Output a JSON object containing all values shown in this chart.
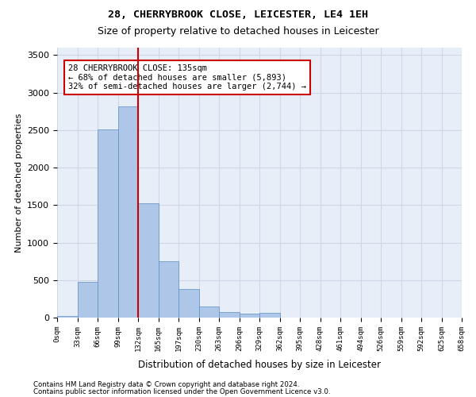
{
  "title1": "28, CHERRYBROOK CLOSE, LEICESTER, LE4 1EH",
  "title2": "Size of property relative to detached houses in Leicester",
  "xlabel": "Distribution of detached houses by size in Leicester",
  "ylabel": "Number of detached properties",
  "bin_labels": [
    "0sqm",
    "33sqm",
    "66sqm",
    "99sqm",
    "132sqm",
    "165sqm",
    "197sqm",
    "230sqm",
    "263sqm",
    "296sqm",
    "329sqm",
    "362sqm",
    "395sqm",
    "428sqm",
    "461sqm",
    "494sqm",
    "526sqm",
    "559sqm",
    "592sqm",
    "625sqm",
    "658sqm"
  ],
  "bar_values": [
    25,
    480,
    2510,
    2820,
    1520,
    750,
    385,
    145,
    75,
    55,
    60,
    0,
    0,
    0,
    0,
    0,
    0,
    0,
    0,
    0
  ],
  "bar_color": "#aec6e8",
  "bar_edge_color": "#5a8fc2",
  "grid_color": "#d0d8e8",
  "background_color": "#e8eef8",
  "vline_x": 4,
  "vline_color": "#cc0000",
  "annotation_text": "28 CHERRYBROOK CLOSE: 135sqm\n← 68% of detached houses are smaller (5,893)\n32% of semi-detached houses are larger (2,744) →",
  "annotation_box_color": "#ffffff",
  "annotation_box_edge": "#cc0000",
  "ylim": [
    0,
    3600
  ],
  "yticks": [
    0,
    500,
    1000,
    1500,
    2000,
    2500,
    3000,
    3500
  ],
  "footer1": "Contains HM Land Registry data © Crown copyright and database right 2024.",
  "footer2": "Contains public sector information licensed under the Open Government Licence v3.0."
}
